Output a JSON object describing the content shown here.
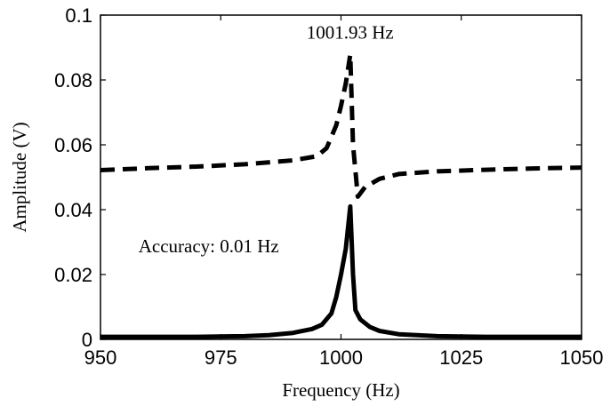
{
  "chart_data": {
    "type": "line",
    "title": "",
    "xlabel": "Frequency (Hz)",
    "ylabel": "Amplitude (V)",
    "xlim": [
      950,
      1050
    ],
    "ylim": [
      0,
      0.1
    ],
    "x_ticks": [
      "950",
      "975",
      "1000",
      "1025",
      "1050"
    ],
    "y_ticks": [
      "0",
      "0.02",
      "0.04",
      "0.06",
      "0.08",
      "0.1"
    ],
    "grid": false,
    "legend": "none",
    "series": [
      {
        "style": "dashed",
        "color": "#000000",
        "x": [
          950,
          960,
          970,
          980,
          990,
          995,
          997,
          999,
          1000,
          1001,
          1001.93,
          1002.5,
          1003.5,
          1005,
          1008,
          1012,
          1020,
          1030,
          1040,
          1050
        ],
        "y": [
          0.0522,
          0.0528,
          0.0533,
          0.054,
          0.0552,
          0.0565,
          0.059,
          0.066,
          0.072,
          0.079,
          0.0878,
          0.06,
          0.044,
          0.047,
          0.0495,
          0.051,
          0.0518,
          0.0523,
          0.0527,
          0.053
        ]
      },
      {
        "style": "solid",
        "color": "#000000",
        "x": [
          950,
          970,
          980,
          985,
          990,
          994,
          996,
          998,
          999,
          1000,
          1001,
          1001.93,
          1002.5,
          1003,
          1004,
          1006,
          1008,
          1012,
          1020,
          1030,
          1040,
          1050
        ],
        "y": [
          0.0008,
          0.0008,
          0.001,
          0.0013,
          0.002,
          0.0032,
          0.0045,
          0.008,
          0.013,
          0.02,
          0.028,
          0.041,
          0.02,
          0.009,
          0.0062,
          0.0038,
          0.0026,
          0.0016,
          0.001,
          0.0008,
          0.0008,
          0.0008
        ]
      }
    ],
    "annotations": [
      {
        "text": "1001.93 Hz",
        "x": 1001.9,
        "y": 0.0928
      },
      {
        "text": "Accuracy: 0.01 Hz",
        "x": 972.5,
        "y": 0.0268
      }
    ]
  }
}
